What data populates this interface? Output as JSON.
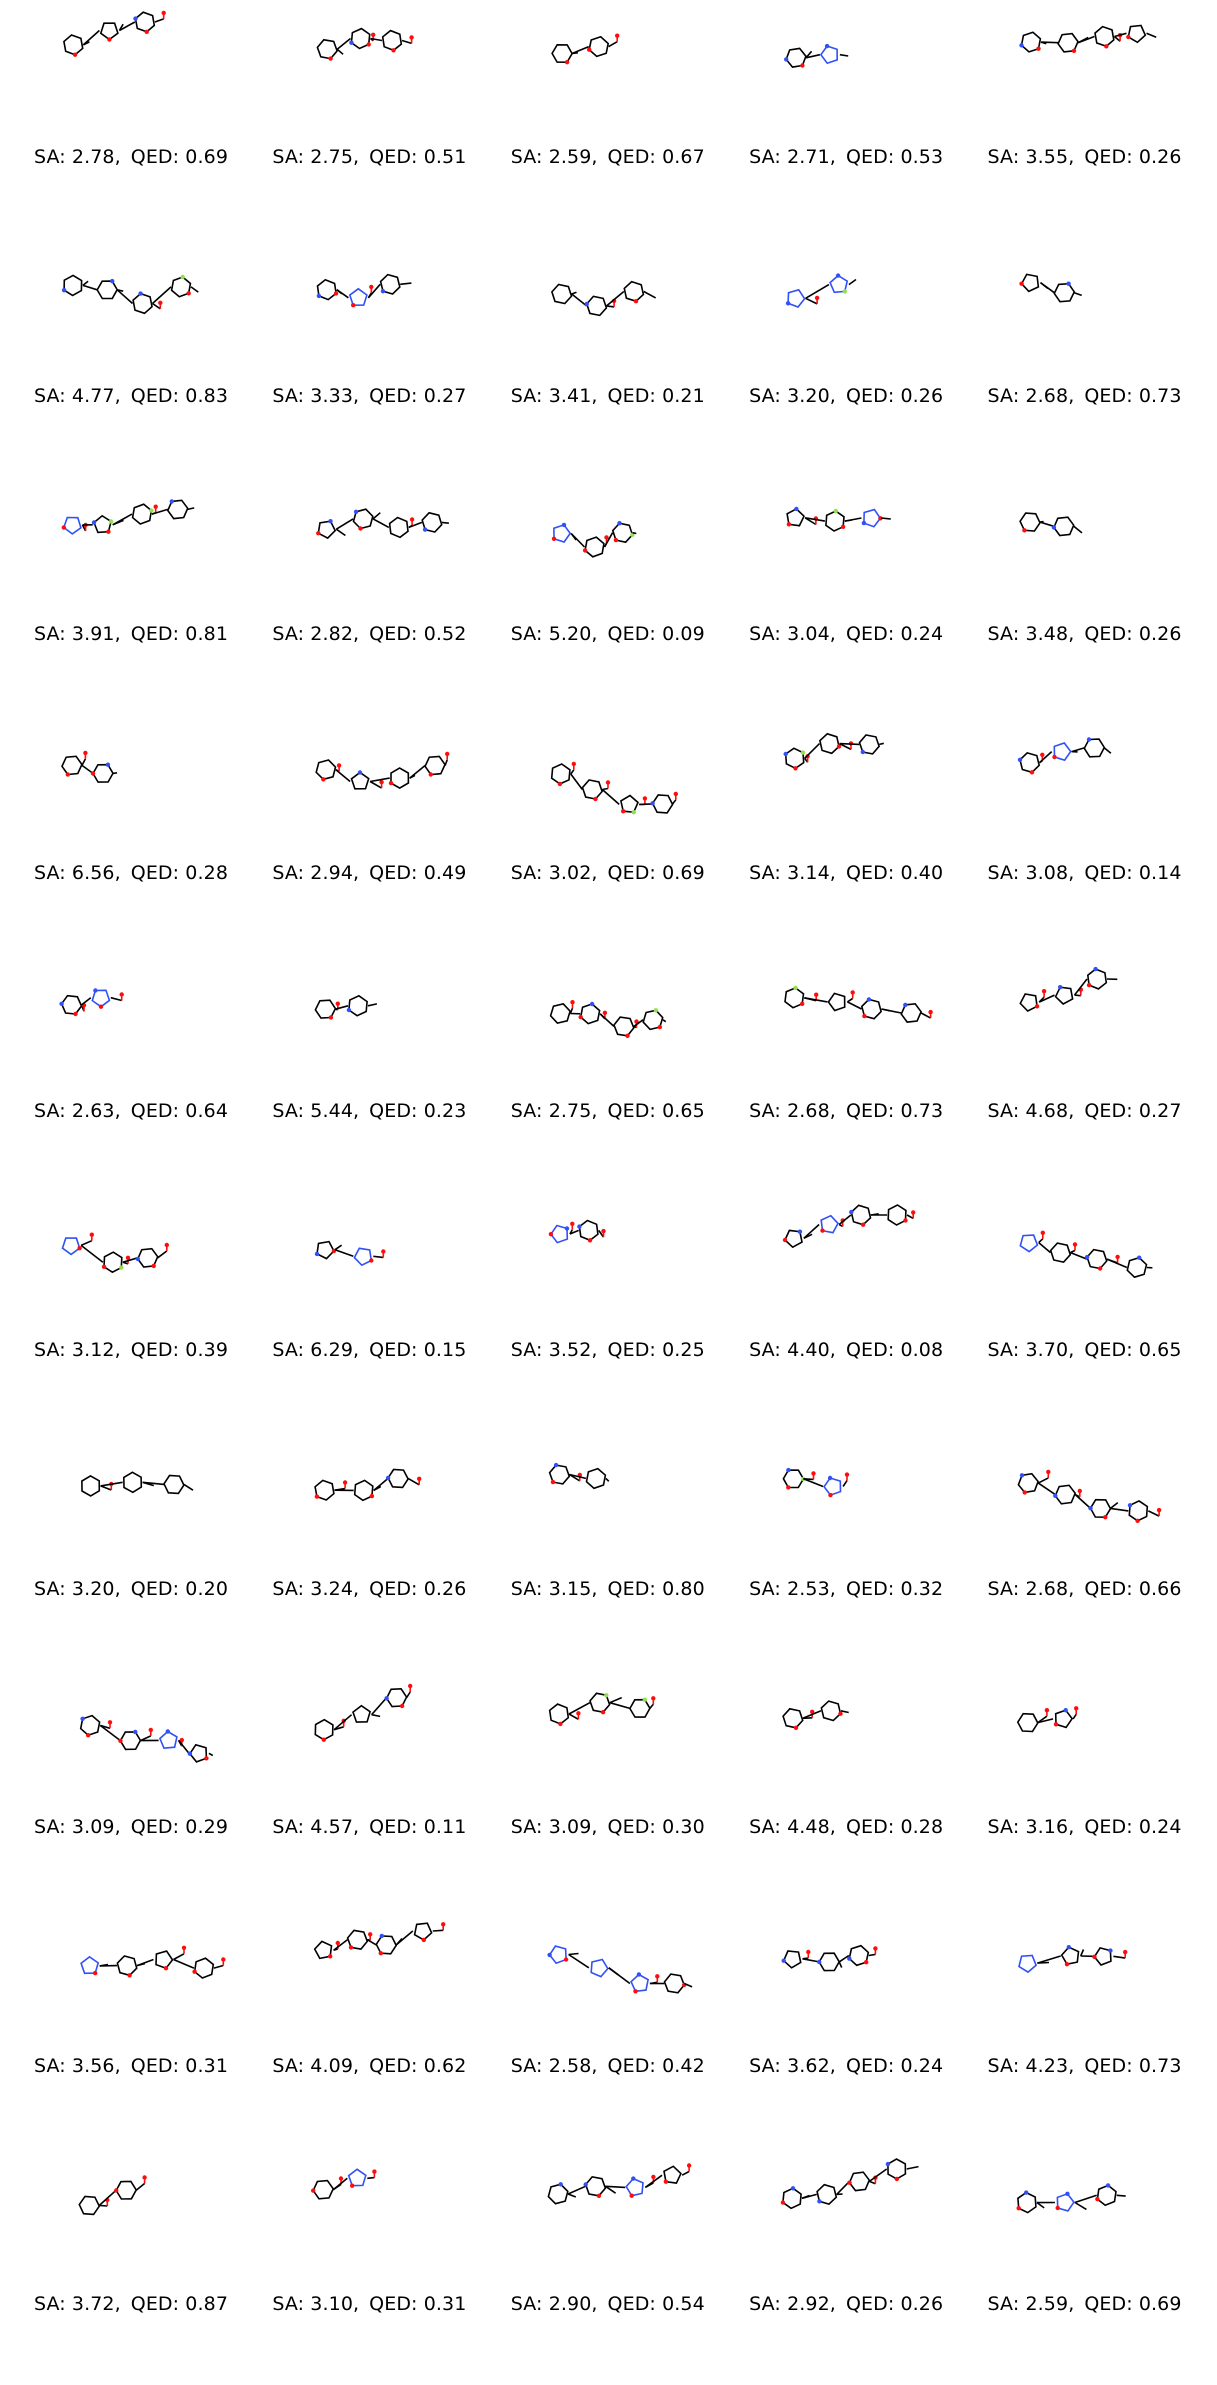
{
  "items": [
    {
      "sa": "2.78",
      "qed": "0.69"
    },
    {
      "sa": "2.75",
      "qed": "0.51"
    },
    {
      "sa": "2.59",
      "qed": "0.67"
    },
    {
      "sa": "2.71",
      "qed": "0.53"
    },
    {
      "sa": "3.55",
      "qed": "0.26"
    },
    {
      "sa": "4.77",
      "qed": "0.83"
    },
    {
      "sa": "3.33",
      "qed": "0.27"
    },
    {
      "sa": "3.41",
      "qed": "0.21"
    },
    {
      "sa": "3.20",
      "qed": "0.26"
    },
    {
      "sa": "2.68",
      "qed": "0.73"
    },
    {
      "sa": "3.91",
      "qed": "0.81"
    },
    {
      "sa": "2.82",
      "qed": "0.52"
    },
    {
      "sa": "5.20",
      "qed": "0.09"
    },
    {
      "sa": "3.04",
      "qed": "0.24"
    },
    {
      "sa": "3.48",
      "qed": "0.26"
    },
    {
      "sa": "6.56",
      "qed": "0.28"
    },
    {
      "sa": "2.94",
      "qed": "0.49"
    },
    {
      "sa": "3.02",
      "qed": "0.69"
    },
    {
      "sa": "3.14",
      "qed": "0.40"
    },
    {
      "sa": "3.08",
      "qed": "0.14"
    },
    {
      "sa": "2.63",
      "qed": "0.64"
    },
    {
      "sa": "5.44",
      "qed": "0.23"
    },
    {
      "sa": "2.75",
      "qed": "0.65"
    },
    {
      "sa": "2.68",
      "qed": "0.73"
    },
    {
      "sa": "4.68",
      "qed": "0.27"
    },
    {
      "sa": "3.12",
      "qed": "0.39"
    },
    {
      "sa": "6.29",
      "qed": "0.15"
    },
    {
      "sa": "3.52",
      "qed": "0.25"
    },
    {
      "sa": "4.40",
      "qed": "0.08"
    },
    {
      "sa": "3.70",
      "qed": "0.65"
    },
    {
      "sa": "3.20",
      "qed": "0.20"
    },
    {
      "sa": "3.24",
      "qed": "0.26"
    },
    {
      "sa": "3.15",
      "qed": "0.80"
    },
    {
      "sa": "2.53",
      "qed": "0.32"
    },
    {
      "sa": "2.68",
      "qed": "0.66"
    },
    {
      "sa": "3.09",
      "qed": "0.29"
    },
    {
      "sa": "4.57",
      "qed": "0.11"
    },
    {
      "sa": "3.09",
      "qed": "0.30"
    },
    {
      "sa": "4.48",
      "qed": "0.28"
    },
    {
      "sa": "3.16",
      "qed": "0.24"
    },
    {
      "sa": "3.56",
      "qed": "0.31"
    },
    {
      "sa": "4.09",
      "qed": "0.62"
    },
    {
      "sa": "2.58",
      "qed": "0.42"
    },
    {
      "sa": "3.62",
      "qed": "0.24"
    },
    {
      "sa": "4.23",
      "qed": "0.73"
    },
    {
      "sa": "3.72",
      "qed": "0.87"
    },
    {
      "sa": "3.10",
      "qed": "0.31"
    },
    {
      "sa": "2.90",
      "qed": "0.54"
    },
    {
      "sa": "2.92",
      "qed": "0.26"
    },
    {
      "sa": "2.59",
      "qed": "0.69"
    }
  ],
  "label_format": {
    "sa_prefix": "SA: ",
    "qed_prefix": "QED: ",
    "separator": ","
  },
  "atom_colors": {
    "carbon": "#000000",
    "nitrogen": "#3050F8",
    "oxygen": "#FF0D0D",
    "fluorine": "#90E050",
    "sulfur": "#FFFF30"
  }
}
